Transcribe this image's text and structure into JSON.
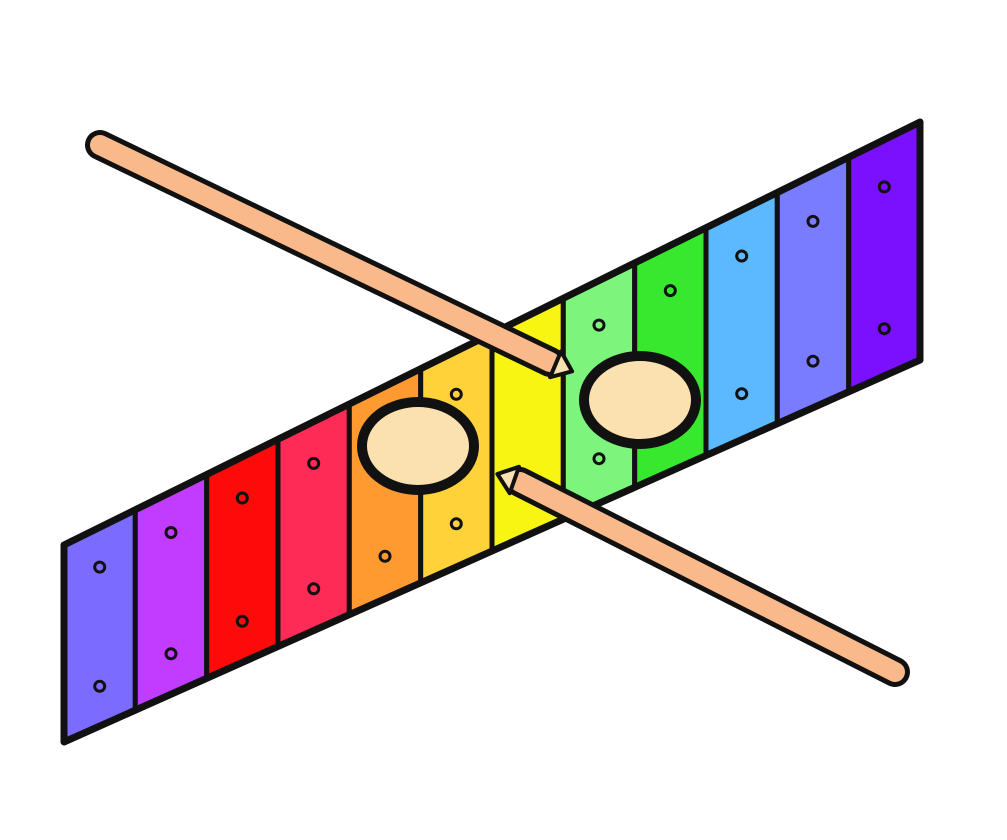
{
  "illustration": {
    "subject": "xylophone-with-mallets",
    "background": "#ffffff",
    "outline_color": "#111111",
    "stick_color": "#f9b98a",
    "mallet_head_color": "#fbe1b0",
    "bars": [
      {
        "color": "#7b6cff"
      },
      {
        "color": "#c13cff"
      },
      {
        "color": "#ff0a0a"
      },
      {
        "color": "#ff2b57"
      },
      {
        "color": "#ff9a30"
      },
      {
        "color": "#ffd23a"
      },
      {
        "color": "#f7f511"
      },
      {
        "color": "#7df57c"
      },
      {
        "color": "#37e82f"
      },
      {
        "color": "#5cb8ff"
      },
      {
        "color": "#7a7cff"
      },
      {
        "color": "#7a10ff"
      }
    ]
  }
}
